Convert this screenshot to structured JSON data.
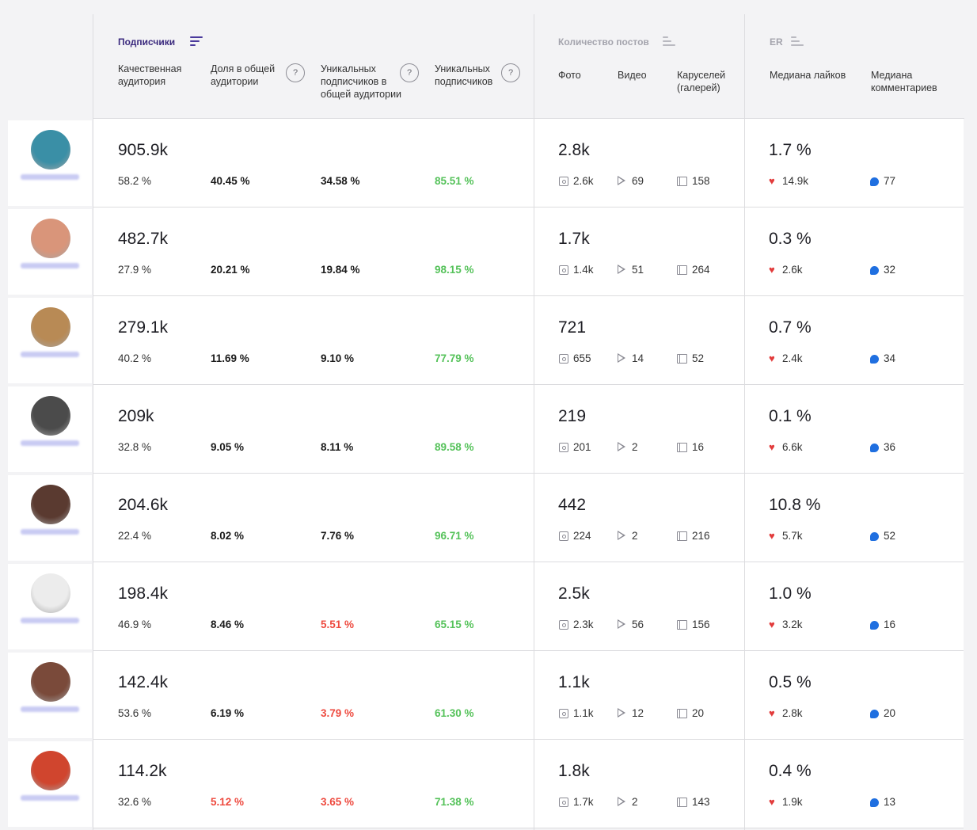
{
  "header": {
    "groups": {
      "subscribers": "Подписчики",
      "posts": "Количество постов",
      "er": "ER"
    },
    "columns": {
      "quality_audience": "Качественная аудитория",
      "share_total": "Доля в общей аудитории",
      "unique_in_total": "Уникальных подписчиков в общей аудитории",
      "unique": "Уникальных подписчиков",
      "photo": "Фото",
      "video": "Видео",
      "carousels": "Каруселей (галерей)",
      "median_likes": "Медиана лайков",
      "median_comments": "Медиана комментариев"
    },
    "help_glyph": "?"
  },
  "rows": [
    {
      "avatar_color": "#3a8fa6",
      "followers": "905.9k",
      "quality": "58.2 %",
      "share": "40.45 %",
      "share_status": "normal",
      "unique_in_total": "34.58 %",
      "uit_status": "normal",
      "unique": "85.51 %",
      "posts": "2.8k",
      "photo": "2.6k",
      "video": "69",
      "carousel": "158",
      "er": "1.7 %",
      "likes": "14.9k",
      "comments": "77"
    },
    {
      "avatar_color": "#d9957a",
      "followers": "482.7k",
      "quality": "27.9 %",
      "share": "20.21 %",
      "share_status": "normal",
      "unique_in_total": "19.84 %",
      "uit_status": "normal",
      "unique": "98.15 %",
      "posts": "1.7k",
      "photo": "1.4k",
      "video": "51",
      "carousel": "264",
      "er": "0.3 %",
      "likes": "2.6k",
      "comments": "32"
    },
    {
      "avatar_color": "#b88a55",
      "followers": "279.1k",
      "quality": "40.2 %",
      "share": "11.69 %",
      "share_status": "normal",
      "unique_in_total": "9.10 %",
      "uit_status": "normal",
      "unique": "77.79 %",
      "posts": "721",
      "photo": "655",
      "video": "14",
      "carousel": "52",
      "er": "0.7 %",
      "likes": "2.4k",
      "comments": "34"
    },
    {
      "avatar_color": "#4b4b4b",
      "followers": "209k",
      "quality": "32.8 %",
      "share": "9.05 %",
      "share_status": "normal",
      "unique_in_total": "8.11 %",
      "uit_status": "normal",
      "unique": "89.58 %",
      "posts": "219",
      "photo": "201",
      "video": "2",
      "carousel": "16",
      "er": "0.1 %",
      "likes": "6.6k",
      "comments": "36"
    },
    {
      "avatar_color": "#5a3a30",
      "followers": "204.6k",
      "quality": "22.4 %",
      "share": "8.02 %",
      "share_status": "normal",
      "unique_in_total": "7.76 %",
      "uit_status": "normal",
      "unique": "96.71 %",
      "posts": "442",
      "photo": "224",
      "video": "2",
      "carousel": "216",
      "er": "10.8 %",
      "likes": "5.7k",
      "comments": "52"
    },
    {
      "avatar_color": "#ececec",
      "followers": "198.4k",
      "quality": "46.9 %",
      "share": "8.46 %",
      "share_status": "normal",
      "unique_in_total": "5.51 %",
      "uit_status": "low",
      "unique": "65.15 %",
      "posts": "2.5k",
      "photo": "2.3k",
      "video": "56",
      "carousel": "156",
      "er": "1.0 %",
      "likes": "3.2k",
      "comments": "16"
    },
    {
      "avatar_color": "#7a4a3a",
      "followers": "142.4k",
      "quality": "53.6 %",
      "share": "6.19 %",
      "share_status": "normal",
      "unique_in_total": "3.79 %",
      "uit_status": "low",
      "unique": "61.30 %",
      "posts": "1.1k",
      "photo": "1.1k",
      "video": "12",
      "carousel": "20",
      "er": "0.5 %",
      "likes": "2.8k",
      "comments": "20"
    },
    {
      "avatar_color": "#d0452e",
      "followers": "114.2k",
      "quality": "32.6 %",
      "share": "5.12 %",
      "share_status": "low",
      "unique_in_total": "3.65 %",
      "uit_status": "low",
      "unique": "71.38 %",
      "posts": "1.8k",
      "photo": "1.7k",
      "video": "2",
      "carousel": "143",
      "er": "0.4 %",
      "likes": "1.9k",
      "comments": "13"
    }
  ],
  "icons": {
    "sort": "sort-lines-icon",
    "help": "question-circle-icon",
    "photo": "photo-icon",
    "video": "play-icon",
    "carousel": "carousel-icon",
    "likes": "heart-icon",
    "comments": "comment-bubble-icon"
  },
  "colors": {
    "positive": "#55c25a",
    "negative": "#ee4a3f",
    "heart": "#e23b3b",
    "comment": "#1f6fe0",
    "active_group": "#3b2a7e"
  }
}
